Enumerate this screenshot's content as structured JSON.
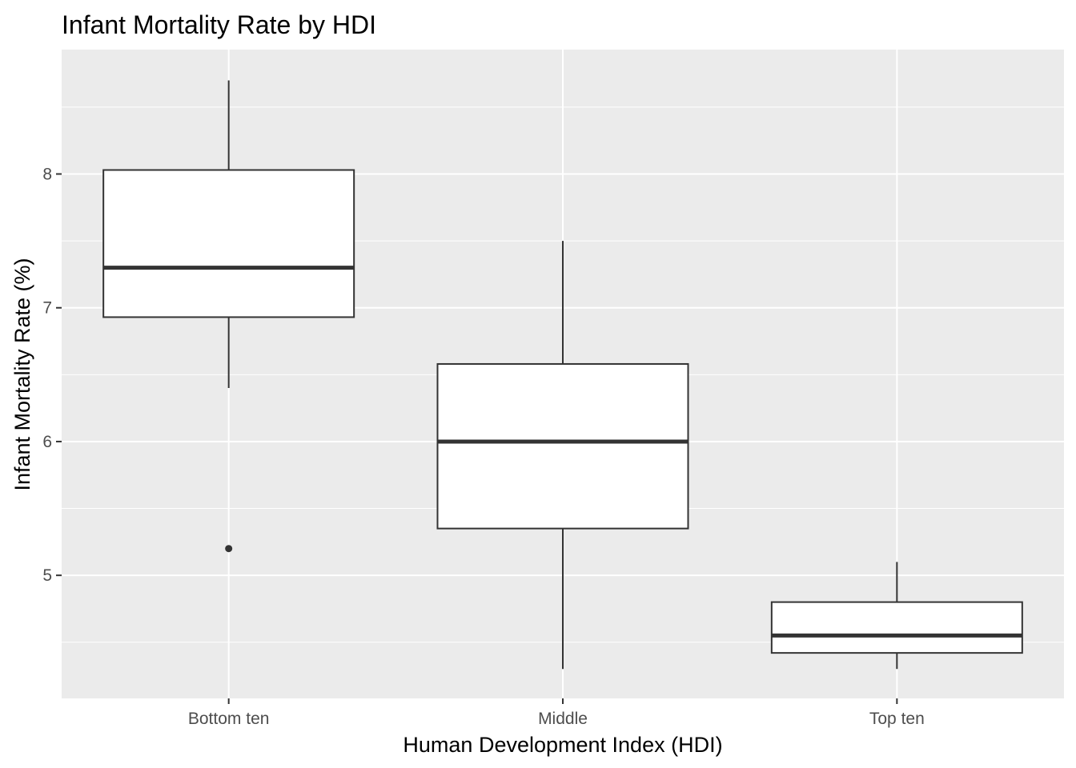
{
  "chart_data": {
    "type": "boxplot",
    "title": "Infant Mortality Rate by HDI",
    "xlabel": "Human Development Index (HDI)",
    "ylabel": "Infant Mortality Rate (%)",
    "categories": [
      "Bottom ten",
      "Middle",
      "Top ten"
    ],
    "y_ticks": [
      5,
      6,
      7,
      8
    ],
    "y_tick_labels": [
      "5",
      "6",
      "7",
      "8"
    ],
    "ylim": [
      4.08,
      8.93
    ],
    "grid": true,
    "legend": "none",
    "boxes": [
      {
        "category": "Bottom ten",
        "lower_whisker": 6.4,
        "q1": 6.93,
        "median": 7.3,
        "q3": 8.03,
        "upper_whisker": 8.7,
        "outliers": [
          5.2
        ]
      },
      {
        "category": "Middle",
        "lower_whisker": 4.3,
        "q1": 5.35,
        "median": 6.0,
        "q3": 6.58,
        "upper_whisker": 7.5,
        "outliers": []
      },
      {
        "category": "Top ten",
        "lower_whisker": 4.3,
        "q1": 4.42,
        "median": 4.55,
        "q3": 4.8,
        "upper_whisker": 5.1,
        "outliers": []
      }
    ],
    "colors": {
      "panel": "#EBEBEB",
      "grid": "#FFFFFF",
      "box_fill": "#FFFFFF",
      "box_line": "#333333",
      "tick": "#333333",
      "tick_text": "#4D4D4D"
    }
  }
}
